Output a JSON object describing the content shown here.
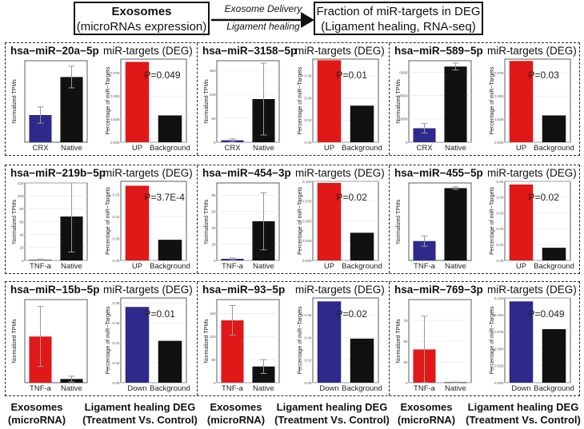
{
  "header": {
    "left_title": "Exosomes",
    "left_subtitle": "(microRNAs expression)",
    "arrow_top": "Exosome Delivery",
    "arrow_bottom": "Ligament healing",
    "right_line1": "Fraction of miR-targets in DEG",
    "right_line2": "(Ligament healing, RNA-seq)"
  },
  "footer": [
    {
      "line1": "Exosomes",
      "line2": "(microRNA)"
    },
    {
      "line1": "Ligament healing DEG",
      "line2": "(Treatment Vs. Control)"
    },
    {
      "line1": "Exosomes",
      "line2": "(microRNA)"
    },
    {
      "line1": "Ligament healing DEG",
      "line2": "(Treatment Vs. Control)"
    },
    {
      "line1": "Exosomes",
      "line2": "(microRNA)"
    },
    {
      "line1": "Ligament healing DEG",
      "line2": "(Treatment Vs. Control)"
    }
  ],
  "colors": {
    "blue": "#2e2a8c",
    "black": "#111111",
    "red": "#e01818"
  },
  "chart_data": [
    {
      "mirna": "hsa−miR−20a−5p",
      "deg_title": "miR-targets (DEG)",
      "expr": {
        "type": "bar",
        "ylabel": "Normalized TPMs",
        "ylim": [
          0,
          30
        ],
        "yticks": [],
        "categories": [
          "CRX",
          "Native"
        ],
        "values": [
          10,
          24
        ],
        "errors": [
          3,
          4
        ],
        "colors": [
          "blue",
          "black"
        ]
      },
      "deg": {
        "type": "bar",
        "ylabel": "Percentage of miR−Targets",
        "ylim": [
          0,
          0.09
        ],
        "yticks": [
          0,
          0.025,
          0.05,
          0.075
        ],
        "ytick_labels": [
          "0.000",
          "0.025",
          "0.050",
          "0.075"
        ],
        "categories": [
          "UP",
          "Background"
        ],
        "values": [
          0.087,
          0.029
        ],
        "colors": [
          "red",
          "black"
        ],
        "pvalue": "P=0.049"
      }
    },
    {
      "mirna": "hsa−miR−3158−5p",
      "deg_title": "miR-targets (DEG)",
      "expr": {
        "type": "bar",
        "ylabel": "Normalized TPMs",
        "ylim": [
          0,
          170
        ],
        "yticks": [
          0,
          50,
          100,
          150
        ],
        "categories": [
          "CRX",
          "Native"
        ],
        "values": [
          4,
          90
        ],
        "errors": [
          3,
          75
        ],
        "colors": [
          "blue",
          "black"
        ]
      },
      "deg": {
        "type": "bar",
        "ylabel": "Percentage of miR−Targets",
        "ylim": [
          0,
          0.075
        ],
        "yticks": [
          0,
          0.02,
          0.04,
          0.06
        ],
        "ytick_labels": [
          "0.00",
          "0.02",
          "0.04",
          "0.06"
        ],
        "categories": [
          "UP",
          "Background"
        ],
        "values": [
          0.074,
          0.033
        ],
        "colors": [
          "red",
          "black"
        ],
        "pvalue": "P=0.01"
      }
    },
    {
      "mirna": "hsa−miR−589−5p",
      "deg_title": "miR-targets (DEG)",
      "expr": {
        "type": "bar",
        "ylabel": "Normalized TPMs",
        "ylim": [
          0,
          7000
        ],
        "yticks": [
          0,
          2000,
          4000,
          6000
        ],
        "categories": [
          "CRX",
          "Native"
        ],
        "values": [
          1200,
          6500
        ],
        "errors": [
          400,
          300
        ],
        "colors": [
          "blue",
          "black"
        ]
      },
      "deg": {
        "type": "bar",
        "ylabel": "Percentage of miR−Targets",
        "ylim": [
          0,
          0.09
        ],
        "yticks": [
          0,
          0.025,
          0.05,
          0.075
        ],
        "ytick_labels": [
          "0.000",
          "0.025",
          "0.050",
          "0.075"
        ],
        "categories": [
          "UP",
          "Background"
        ],
        "values": [
          0.088,
          0.029
        ],
        "colors": [
          "red",
          "black"
        ],
        "pvalue": "P=0.03"
      }
    },
    {
      "mirna": "hsa−miR−219b−5p",
      "deg_title": "miR-targets (DEG)",
      "expr": {
        "type": "bar",
        "ylabel": "Normalized TPMs",
        "ylim": [
          0,
          120
        ],
        "yticks": [
          0,
          20,
          40,
          60,
          80,
          100,
          120
        ],
        "categories": [
          "TNF-a",
          "Native"
        ],
        "values": [
          1,
          68
        ],
        "errors": [
          1,
          55
        ],
        "colors": [
          "blue",
          "black"
        ]
      },
      "deg": {
        "type": "bar",
        "ylabel": "Percentage of miR−Targets",
        "ylim": [
          0,
          0.18
        ],
        "yticks": [
          0,
          0.05,
          0.1,
          0.15
        ],
        "ytick_labels": [
          "0.00",
          "0.05",
          "0.10",
          "0.15"
        ],
        "categories": [
          "UP",
          "Background"
        ],
        "values": [
          0.17,
          0.047
        ],
        "colors": [
          "red",
          "black"
        ],
        "pvalue": "P=3.7E-4"
      }
    },
    {
      "mirna": "hsa−miR−454−3p",
      "deg_title": "miR-targets (DEG)",
      "expr": {
        "type": "bar",
        "ylabel": "Normalized TPMs",
        "ylim": [
          0,
          95
        ],
        "yticks": [
          0,
          20,
          40,
          60,
          80
        ],
        "categories": [
          "TNF-a",
          "Native"
        ],
        "values": [
          2,
          48
        ],
        "errors": [
          1,
          35
        ],
        "colors": [
          "blue",
          "black"
        ]
      },
      "deg": {
        "type": "bar",
        "ylabel": "Percentage of miR−Targets",
        "ylim": [
          0,
          0.1
        ],
        "yticks": [
          0,
          0.025,
          0.05,
          0.075,
          0.1
        ],
        "ytick_labels": [
          "0.000",
          "0.025",
          "0.050",
          "0.075",
          "0.100"
        ],
        "categories": [
          "UP",
          "Background"
        ],
        "values": [
          0.098,
          0.035
        ],
        "colors": [
          "red",
          "black"
        ],
        "pvalue": "P=0.02"
      }
    },
    {
      "mirna": "hsa−miR−455−5p",
      "deg_title": "miR-targets (DEG)",
      "expr": {
        "type": "bar",
        "ylabel": "Normalized TPMs",
        "ylim": [
          0,
          300
        ],
        "yticks": [],
        "categories": [
          "TNF-a",
          "Native"
        ],
        "values": [
          75,
          280
        ],
        "errors": [
          20,
          5
        ],
        "colors": [
          "blue",
          "black"
        ]
      },
      "deg": {
        "type": "bar",
        "ylabel": "Percentage of miR−Targets",
        "ylim": [
          0,
          0.05
        ],
        "yticks": [
          0,
          0.01,
          0.02,
          0.03,
          0.04,
          0.05
        ],
        "ytick_labels": [
          "0.00",
          "0.01",
          "0.02",
          "0.03",
          "0.04",
          "0.05"
        ],
        "categories": [
          "UP",
          "Background"
        ],
        "values": [
          0.048,
          0.008
        ],
        "colors": [
          "red",
          "black"
        ],
        "pvalue": "P=0.02"
      }
    },
    {
      "mirna": "hsa−miR−15b−5p",
      "deg_title": "miR-targets (DEG)",
      "expr": {
        "type": "bar",
        "ylabel": "Normalized TPMs",
        "ylim": [
          0,
          180
        ],
        "yticks": [],
        "categories": [
          "TNF-a",
          "Native"
        ],
        "values": [
          100,
          8
        ],
        "errors": [
          65,
          6
        ],
        "colors": [
          "red",
          "black"
        ]
      },
      "deg": {
        "type": "bar",
        "ylabel": "Percentage of miR−Targets",
        "ylim": [
          0,
          0.085
        ],
        "yticks": [
          0,
          0.02,
          0.04,
          0.06,
          0.08
        ],
        "ytick_labels": [
          "0.00",
          "0.02",
          "0.04",
          "0.06",
          "0.08"
        ],
        "categories": [
          "Down",
          "Background"
        ],
        "values": [
          0.076,
          0.042
        ],
        "colors": [
          "blue",
          "black"
        ],
        "pvalue": "P=0.01"
      }
    },
    {
      "mirna": "hsa−miR−93−5p",
      "deg_title": "miR-targets (DEG)",
      "expr": {
        "type": "bar",
        "ylabel": "Normalized TPMs",
        "ylim": [
          0,
          180
        ],
        "yticks": [
          0,
          50,
          100,
          150
        ],
        "categories": [
          "TNF-a",
          "Native"
        ],
        "values": [
          135,
          35
        ],
        "errors": [
          32,
          15
        ],
        "colors": [
          "red",
          "black"
        ]
      },
      "deg": {
        "type": "bar",
        "ylabel": "Percentage of miR−Targets",
        "ylim": [
          0,
          0.075
        ],
        "yticks": [
          0,
          0.02,
          0.04,
          0.06
        ],
        "ytick_labels": [
          "0.00",
          "0.02",
          "0.04",
          "0.06"
        ],
        "categories": [
          "Down",
          "Background"
        ],
        "values": [
          0.072,
          0.039
        ],
        "colors": [
          "blue",
          "black"
        ],
        "pvalue": "P=0.02"
      }
    },
    {
      "mirna": "hsa−miR−769−3p",
      "deg_title": "miR-targets (DEG)",
      "expr": {
        "type": "bar",
        "ylabel": "Normalized TPMs",
        "ylim": [
          0,
          100
        ],
        "yticks": [
          0,
          25,
          50,
          75
        ],
        "categories": [
          "TNF-a",
          "Native"
        ],
        "values": [
          40,
          0.5
        ],
        "errors": [
          40,
          0.3
        ],
        "colors": [
          "red",
          "black"
        ]
      },
      "deg": {
        "type": "bar",
        "ylabel": "Percentage of miR−Targets",
        "ylim": [
          0,
          0.125
        ],
        "yticks": [
          0,
          0.025,
          0.05,
          0.075,
          0.1,
          0.125
        ],
        "ytick_labels": [
          "0.000",
          "0.025",
          "0.050",
          "0.075",
          "0.100",
          "0.125"
        ],
        "categories": [
          "Down",
          "Background"
        ],
        "values": [
          0.12,
          0.079
        ],
        "colors": [
          "blue",
          "black"
        ],
        "pvalue": "P=0.049"
      }
    }
  ]
}
